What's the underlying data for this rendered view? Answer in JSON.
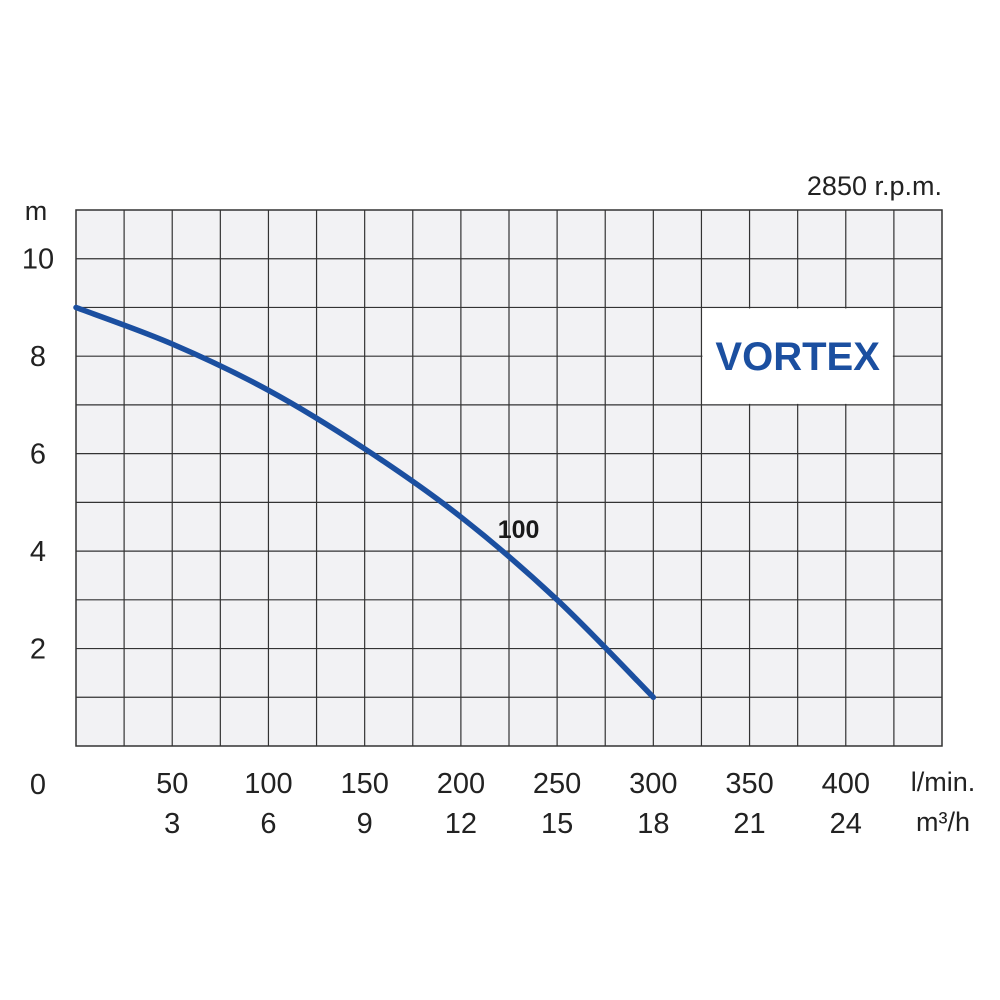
{
  "chart_data": {
    "type": "line",
    "rpm_label": "2850 r.p.m.",
    "brand_label": "VORTEX",
    "colors": {
      "curve": "#1b4fa0",
      "brand_text": "#1b4fa0",
      "grid_fill": "#f2f2f4",
      "grid_line": "#333333"
    },
    "y_axis": {
      "unit": "m",
      "ticks": [
        0,
        2,
        4,
        6,
        8,
        10
      ],
      "tick_labels": [
        "0",
        "2",
        "4",
        "6",
        "8",
        "10"
      ],
      "range": [
        0,
        11
      ]
    },
    "x_axis": {
      "unit_primary": "l/min.",
      "unit_secondary": "m³/h",
      "ticks": [
        50,
        100,
        150,
        200,
        250,
        300,
        350,
        400
      ],
      "tick_labels_primary": [
        "50",
        "100",
        "150",
        "200",
        "250",
        "300",
        "350",
        "400"
      ],
      "tick_labels_secondary": [
        "3",
        "6",
        "9",
        "12",
        "15",
        "18",
        "21",
        "24"
      ],
      "range": [
        0,
        450
      ]
    },
    "series": [
      {
        "name": "100",
        "x": [
          0,
          50,
          100,
          150,
          200,
          250,
          300
        ],
        "y": [
          9.0,
          8.25,
          7.3,
          6.1,
          4.7,
          3.0,
          1.0
        ]
      }
    ]
  }
}
